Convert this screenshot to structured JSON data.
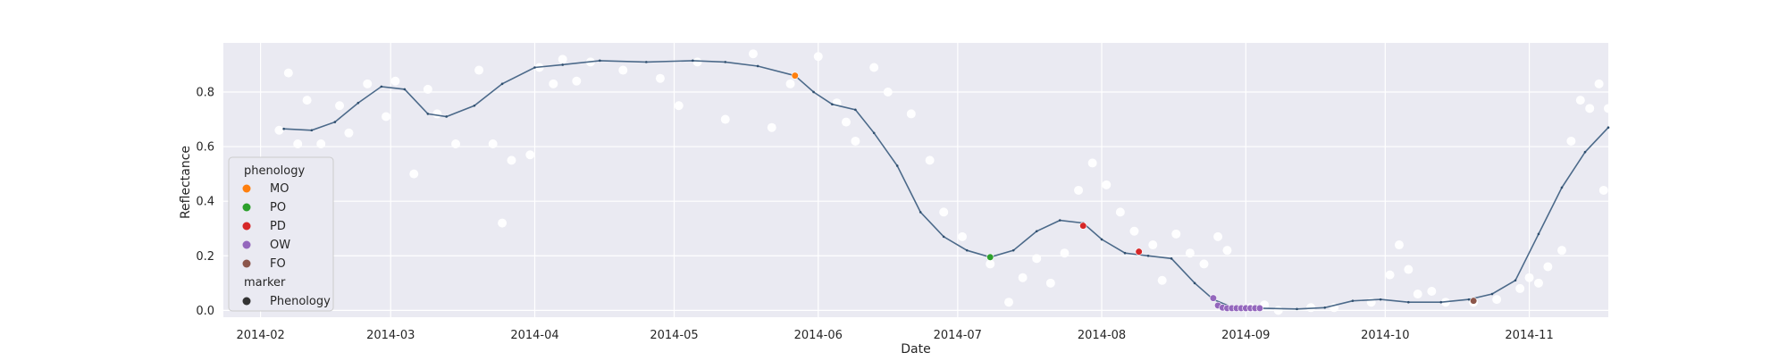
{
  "chart_data": {
    "type": "scatter",
    "title": "",
    "xlabel": "Date",
    "ylabel": "Reflectance",
    "xlim": [
      "2014-01-24",
      "2014-11-18"
    ],
    "ylim": [
      -0.025,
      0.98
    ],
    "x_ticks": [
      "2014-02",
      "2014-03",
      "2014-04",
      "2014-05",
      "2014-06",
      "2014-07",
      "2014-08",
      "2014-09",
      "2014-10",
      "2014-11"
    ],
    "y_ticks": [
      0.0,
      0.2,
      0.4,
      0.6,
      0.8
    ],
    "grid": true,
    "background": "#eaeaf2",
    "legend": {
      "placement": "lower-left",
      "hue_title": "phenology",
      "style_title": "marker",
      "entries": [
        {
          "label": "MO",
          "color": "#ff7f0e"
        },
        {
          "label": "PO",
          "color": "#2ca02c"
        },
        {
          "label": "PD",
          "color": "#d62728"
        },
        {
          "label": "OW",
          "color": "#9467bd"
        },
        {
          "label": "FO",
          "color": "#8c564b"
        }
      ],
      "style_entries": [
        {
          "label": "Phenology",
          "color": "#333333"
        }
      ]
    },
    "smoothed_series": {
      "color": "#4c6a8a",
      "points": [
        [
          "2014-02-06",
          0.665
        ],
        [
          "2014-02-12",
          0.66
        ],
        [
          "2014-02-17",
          0.69
        ],
        [
          "2014-02-22",
          0.76
        ],
        [
          "2014-02-27",
          0.82
        ],
        [
          "2014-03-04",
          0.81
        ],
        [
          "2014-03-09",
          0.72
        ],
        [
          "2014-03-13",
          0.71
        ],
        [
          "2014-03-19",
          0.75
        ],
        [
          "2014-03-25",
          0.83
        ],
        [
          "2014-04-01",
          0.89
        ],
        [
          "2014-04-07",
          0.9
        ],
        [
          "2014-04-15",
          0.915
        ],
        [
          "2014-04-25",
          0.91
        ],
        [
          "2014-05-05",
          0.915
        ],
        [
          "2014-05-12",
          0.91
        ],
        [
          "2014-05-19",
          0.895
        ],
        [
          "2014-05-27",
          0.86
        ],
        [
          "2014-05-31",
          0.8
        ],
        [
          "2014-06-04",
          0.755
        ],
        [
          "2014-06-09",
          0.735
        ],
        [
          "2014-06-13",
          0.65
        ],
        [
          "2014-06-18",
          0.53
        ],
        [
          "2014-06-23",
          0.36
        ],
        [
          "2014-06-28",
          0.27
        ],
        [
          "2014-07-03",
          0.22
        ],
        [
          "2014-07-08",
          0.195
        ],
        [
          "2014-07-13",
          0.22
        ],
        [
          "2014-07-18",
          0.29
        ],
        [
          "2014-07-23",
          0.33
        ],
        [
          "2014-07-28",
          0.32
        ],
        [
          "2014-08-01",
          0.26
        ],
        [
          "2014-08-06",
          0.21
        ],
        [
          "2014-08-11",
          0.2
        ],
        [
          "2014-08-16",
          0.19
        ],
        [
          "2014-08-21",
          0.1
        ],
        [
          "2014-08-25",
          0.04
        ],
        [
          "2014-08-29",
          0.012
        ],
        [
          "2014-09-04",
          0.008
        ],
        [
          "2014-09-12",
          0.005
        ],
        [
          "2014-09-18",
          0.01
        ],
        [
          "2014-09-24",
          0.035
        ],
        [
          "2014-09-30",
          0.04
        ],
        [
          "2014-10-06",
          0.03
        ],
        [
          "2014-10-13",
          0.03
        ],
        [
          "2014-10-19",
          0.04
        ],
        [
          "2014-10-24",
          0.06
        ],
        [
          "2014-10-29",
          0.11
        ],
        [
          "2014-11-03",
          0.28
        ],
        [
          "2014-11-08",
          0.45
        ],
        [
          "2014-11-13",
          0.58
        ],
        [
          "2014-11-18",
          0.67
        ]
      ]
    },
    "observed_points": [
      [
        "2014-02-05",
        0.66
      ],
      [
        "2014-02-07",
        0.87
      ],
      [
        "2014-02-09",
        0.61
      ],
      [
        "2014-02-11",
        0.77
      ],
      [
        "2014-02-14",
        0.61
      ],
      [
        "2014-02-18",
        0.75
      ],
      [
        "2014-02-20",
        0.65
      ],
      [
        "2014-02-24",
        0.83
      ],
      [
        "2014-02-28",
        0.71
      ],
      [
        "2014-03-02",
        0.84
      ],
      [
        "2014-03-06",
        0.5
      ],
      [
        "2014-03-09",
        0.81
      ],
      [
        "2014-03-11",
        0.72
      ],
      [
        "2014-03-15",
        0.61
      ],
      [
        "2014-03-20",
        0.88
      ],
      [
        "2014-03-23",
        0.61
      ],
      [
        "2014-03-25",
        0.32
      ],
      [
        "2014-03-27",
        0.55
      ],
      [
        "2014-03-31",
        0.57
      ],
      [
        "2014-04-02",
        0.89
      ],
      [
        "2014-04-05",
        0.83
      ],
      [
        "2014-04-07",
        0.92
      ],
      [
        "2014-04-10",
        0.84
      ],
      [
        "2014-04-13",
        0.91
      ],
      [
        "2014-04-20",
        0.88
      ],
      [
        "2014-04-28",
        0.85
      ],
      [
        "2014-05-02",
        0.75
      ],
      [
        "2014-05-06",
        0.91
      ],
      [
        "2014-05-12",
        0.7
      ],
      [
        "2014-05-18",
        0.94
      ],
      [
        "2014-05-22",
        0.67
      ],
      [
        "2014-05-26",
        0.83
      ],
      [
        "2014-06-01",
        0.93
      ],
      [
        "2014-06-05",
        0.76
      ],
      [
        "2014-06-07",
        0.69
      ],
      [
        "2014-06-09",
        0.62
      ],
      [
        "2014-06-13",
        0.89
      ],
      [
        "2014-06-16",
        0.8
      ],
      [
        "2014-06-21",
        0.72
      ],
      [
        "2014-06-25",
        0.55
      ],
      [
        "2014-06-28",
        0.36
      ],
      [
        "2014-07-02",
        0.27
      ],
      [
        "2014-07-08",
        0.17
      ],
      [
        "2014-07-12",
        0.03
      ],
      [
        "2014-07-15",
        0.12
      ],
      [
        "2014-07-18",
        0.19
      ],
      [
        "2014-07-21",
        0.1
      ],
      [
        "2014-07-24",
        0.21
      ],
      [
        "2014-07-27",
        0.44
      ],
      [
        "2014-07-30",
        0.54
      ],
      [
        "2014-08-02",
        0.46
      ],
      [
        "2014-08-05",
        0.36
      ],
      [
        "2014-08-08",
        0.29
      ],
      [
        "2014-08-12",
        0.24
      ],
      [
        "2014-08-14",
        0.11
      ],
      [
        "2014-08-17",
        0.28
      ],
      [
        "2014-08-20",
        0.21
      ],
      [
        "2014-08-23",
        0.17
      ],
      [
        "2014-08-26",
        0.27
      ],
      [
        "2014-08-28",
        0.22
      ],
      [
        "2014-09-02",
        0.01
      ],
      [
        "2014-09-05",
        0.02
      ],
      [
        "2014-09-08",
        0.0
      ],
      [
        "2014-09-15",
        0.01
      ],
      [
        "2014-09-20",
        0.01
      ],
      [
        "2014-09-28",
        0.03
      ],
      [
        "2014-10-02",
        0.13
      ],
      [
        "2014-10-04",
        0.24
      ],
      [
        "2014-10-06",
        0.15
      ],
      [
        "2014-10-08",
        0.06
      ],
      [
        "2014-10-11",
        0.07
      ],
      [
        "2014-10-14",
        0.03
      ],
      [
        "2014-10-20",
        0.03
      ],
      [
        "2014-10-25",
        0.04
      ],
      [
        "2014-10-30",
        0.08
      ],
      [
        "2014-11-01",
        0.12
      ],
      [
        "2014-11-03",
        0.1
      ],
      [
        "2014-11-05",
        0.16
      ],
      [
        "2014-11-08",
        0.22
      ],
      [
        "2014-11-10",
        0.62
      ],
      [
        "2014-11-12",
        0.77
      ],
      [
        "2014-11-14",
        0.74
      ],
      [
        "2014-11-16",
        0.83
      ],
      [
        "2014-11-17",
        0.44
      ],
      [
        "2014-11-18",
        0.74
      ]
    ],
    "phenology_points": [
      {
        "phase": "MO",
        "x": "2014-05-27",
        "y": 0.86
      },
      {
        "phase": "PO",
        "x": "2014-07-08",
        "y": 0.195
      },
      {
        "phase": "PD",
        "x": "2014-07-28",
        "y": 0.31
      },
      {
        "phase": "PD",
        "x": "2014-08-09",
        "y": 0.215
      },
      {
        "phase": "OW",
        "x": "2014-08-25",
        "y": 0.045
      },
      {
        "phase": "OW",
        "x": "2014-08-26",
        "y": 0.018
      },
      {
        "phase": "OW",
        "x": "2014-08-27",
        "y": 0.01
      },
      {
        "phase": "OW",
        "x": "2014-08-28",
        "y": 0.008
      },
      {
        "phase": "OW",
        "x": "2014-08-29",
        "y": 0.008
      },
      {
        "phase": "OW",
        "x": "2014-08-30",
        "y": 0.008
      },
      {
        "phase": "OW",
        "x": "2014-08-31",
        "y": 0.008
      },
      {
        "phase": "OW",
        "x": "2014-09-01",
        "y": 0.008
      },
      {
        "phase": "OW",
        "x": "2014-09-02",
        "y": 0.008
      },
      {
        "phase": "OW",
        "x": "2014-09-03",
        "y": 0.008
      },
      {
        "phase": "OW",
        "x": "2014-09-04",
        "y": 0.008
      },
      {
        "phase": "FO",
        "x": "2014-10-20",
        "y": 0.035
      }
    ]
  }
}
